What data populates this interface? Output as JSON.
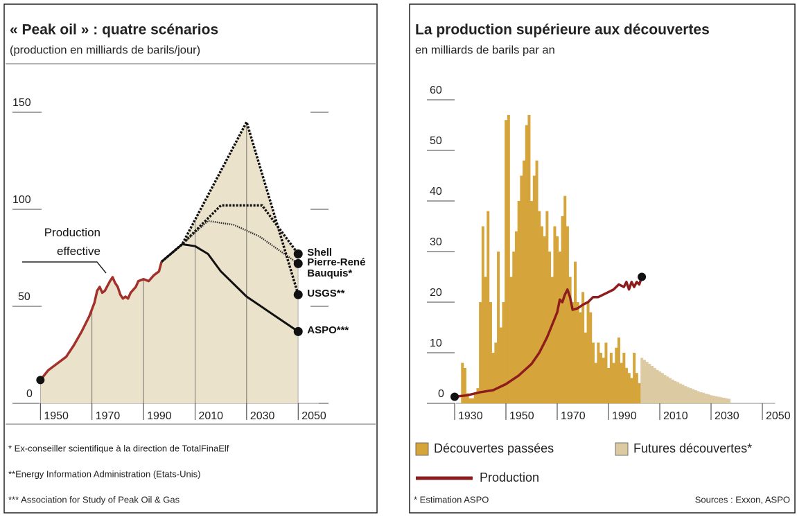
{
  "chart_data": [
    {
      "type": "line",
      "title": "« Peak oil » : quatre scénarios",
      "subtitle": "(production en milliards de barils/jour)",
      "xlim": [
        1944,
        2058
      ],
      "ylim": [
        0,
        160
      ],
      "xticks": [
        1950,
        1970,
        1990,
        2010,
        2030,
        2050
      ],
      "yticks": [
        0,
        50,
        100,
        150
      ],
      "fill": "#ebe2cb",
      "series": [
        {
          "name": "Production effective",
          "color": "#a3312b",
          "dash": "none",
          "width": 3.5,
          "x": [
            1950,
            1953,
            1956,
            1960,
            1963,
            1966,
            1969,
            1971,
            1972,
            1973,
            1974,
            1975,
            1977,
            1978,
            1979,
            1980,
            1981,
            1982,
            1983,
            1984,
            1985,
            1987,
            1988,
            1990,
            1992,
            1994,
            1996,
            1997
          ],
          "values": [
            12,
            17,
            20,
            24,
            30,
            37,
            45,
            52,
            58,
            60,
            57,
            58,
            63,
            65,
            62,
            60,
            56,
            54,
            55,
            54,
            57,
            60,
            63,
            64,
            63,
            66,
            68,
            73
          ]
        },
        {
          "name": "Shell",
          "color": "#111111",
          "dash": "3 2",
          "width": 3.5,
          "x": [
            1997,
            2005,
            2020,
            2036,
            2050
          ],
          "values": [
            73,
            82,
            102,
            102,
            77
          ]
        },
        {
          "name": "Pierre-René Bauquis*",
          "color": "#333333",
          "dash": "1.5 1.5",
          "width": 2.5,
          "x": [
            1997,
            2005,
            2015,
            2025,
            2035,
            2050
          ],
          "values": [
            73,
            82,
            94,
            92,
            86,
            72
          ]
        },
        {
          "name": "USGS**",
          "color": "#111111",
          "dash": "3 2",
          "width": 3.5,
          "x": [
            1997,
            2005,
            2030,
            2050
          ],
          "values": [
            73,
            82,
            145,
            56
          ]
        },
        {
          "name": "ASPO***",
          "color": "#111111",
          "dash": "none",
          "width": 3,
          "x": [
            1997,
            2005,
            2010,
            2015,
            2020,
            2030,
            2040,
            2050
          ],
          "values": [
            73,
            82,
            81,
            77,
            68,
            55,
            46,
            37
          ]
        }
      ],
      "notes": [
        "* Ex-conseiller scientifique à la direction de TotalFinaElf",
        "**Energy Information Administration (Etats-Unis)",
        "*** Association for Study of Peak Oil & Gas"
      ]
    },
    {
      "type": "bar",
      "title": "La production supérieure aux découvertes",
      "subtitle": "en milliards de barils par an",
      "xlim": [
        1925,
        2055
      ],
      "ylim": [
        0,
        60
      ],
      "xticks": [
        1930,
        1950,
        1970,
        1990,
        2010,
        2030,
        2050
      ],
      "yticks": [
        0,
        10,
        20,
        30,
        40,
        50,
        60
      ],
      "series": [
        {
          "name": "Découvertes passées",
          "color": "#d5a53c",
          "x": [
            1933,
            1934,
            1935,
            1936,
            1937,
            1938,
            1939,
            1940,
            1941,
            1942,
            1943,
            1944,
            1945,
            1946,
            1947,
            1948,
            1949,
            1950,
            1951,
            1952,
            1953,
            1954,
            1955,
            1956,
            1957,
            1958,
            1959,
            1960,
            1961,
            1962,
            1963,
            1964,
            1965,
            1966,
            1967,
            1968,
            1969,
            1970,
            1971,
            1972,
            1973,
            1974,
            1975,
            1976,
            1977,
            1978,
            1979,
            1980,
            1981,
            1982,
            1983,
            1984,
            1985,
            1986,
            1987,
            1988,
            1989,
            1990,
            1991,
            1992,
            1993,
            1994,
            1995,
            1996,
            1997,
            1998,
            1999,
            2000,
            2001,
            2002
          ],
          "values": [
            8,
            7,
            2,
            1,
            1,
            2,
            3,
            20,
            35,
            25,
            38,
            20,
            10,
            12,
            30,
            15,
            20,
            56,
            57,
            25,
            30,
            34,
            40,
            45,
            48,
            55,
            57,
            40,
            45,
            48,
            38,
            35,
            33,
            38,
            30,
            25,
            35,
            33,
            30,
            37,
            41,
            35,
            25,
            20,
            28,
            20,
            18,
            22,
            14,
            20,
            18,
            12,
            8,
            12,
            10,
            9,
            12,
            7,
            10,
            8,
            11,
            13,
            8,
            10,
            7,
            6,
            5,
            10,
            6,
            4
          ]
        },
        {
          "name": "Futures découvertes*",
          "color": "#dccaa2",
          "x": [
            2003,
            2004,
            2005,
            2006,
            2007,
            2008,
            2009,
            2010,
            2011,
            2012,
            2013,
            2014,
            2015,
            2016,
            2017,
            2018,
            2019,
            2020,
            2021,
            2022,
            2023,
            2024,
            2025,
            2026,
            2027,
            2028,
            2029,
            2030,
            2031,
            2032,
            2033,
            2034,
            2035,
            2036,
            2037
          ],
          "values": [
            9,
            8.6,
            8.2,
            7.8,
            7.4,
            7,
            6.6,
            6.3,
            6,
            5.6,
            5.3,
            5,
            4.7,
            4.4,
            4.2,
            3.9,
            3.7,
            3.4,
            3.2,
            3,
            2.8,
            2.6,
            2.4,
            2.2,
            2.1,
            1.9,
            1.8,
            1.6,
            1.5,
            1.4,
            1.3,
            1.2,
            1.1,
            1,
            0.9
          ]
        },
        {
          "name": "Production",
          "type": "line",
          "color": "#8e1c1c",
          "x": [
            1930,
            1935,
            1940,
            1945,
            1950,
            1955,
            1960,
            1963,
            1966,
            1968,
            1970,
            1971,
            1972,
            1973,
            1974,
            1975,
            1976,
            1978,
            1980,
            1982,
            1984,
            1986,
            1988,
            1990,
            1992,
            1994,
            1996,
            1997,
            1998,
            1999,
            2000,
            2001,
            2002,
            2003
          ],
          "values": [
            1.3,
            1.6,
            2.2,
            2.6,
            3.8,
            5.5,
            7.8,
            10,
            13,
            15.5,
            18,
            20.5,
            20,
            21.5,
            22.5,
            21,
            18.5,
            18.8,
            19.5,
            20,
            21,
            21,
            21.5,
            22,
            22.5,
            23.5,
            23,
            24,
            22.5,
            24,
            23,
            24,
            23.5,
            25
          ]
        }
      ],
      "notes": [
        "* Estimation ASPO"
      ],
      "source": "Sources : Exxon, ASPO"
    }
  ]
}
